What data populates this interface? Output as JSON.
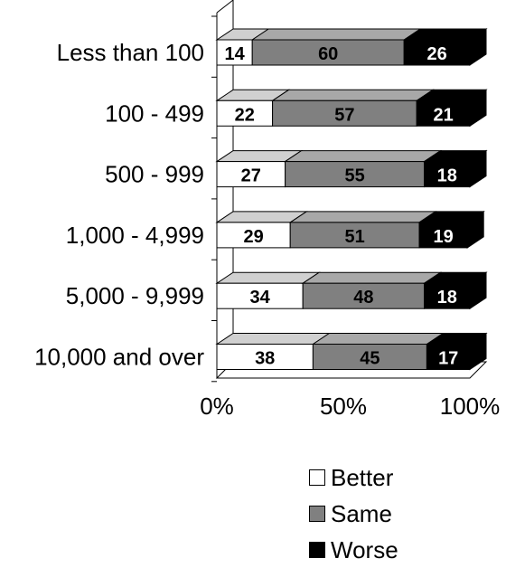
{
  "chart_data": {
    "type": "bar",
    "orientation": "horizontal",
    "stacked": true,
    "percent_stacked": true,
    "categories": [
      "Less than 100",
      "100 - 499",
      "500 - 999",
      "1,000 - 4,999",
      "5,000 - 9,999",
      "10,000 and over"
    ],
    "series": [
      {
        "name": "Better",
        "values": [
          14,
          22,
          27,
          29,
          34,
          38
        ],
        "color": "#ffffff"
      },
      {
        "name": "Same",
        "values": [
          60,
          57,
          55,
          51,
          48,
          45
        ],
        "color": "#808080"
      },
      {
        "name": "Worse",
        "values": [
          26,
          21,
          18,
          19,
          18,
          17
        ],
        "color": "#000000"
      }
    ],
    "xlim": [
      0,
      100
    ],
    "x_ticks": [
      "0%",
      "50%",
      "100%"
    ],
    "grid": false,
    "legend_position": "bottom-right",
    "style": "3d"
  },
  "legend": {
    "items": [
      {
        "label": "Better",
        "color": "#ffffff"
      },
      {
        "label": "Same",
        "color": "#808080"
      },
      {
        "label": "Worse",
        "color": "#000000"
      }
    ]
  }
}
